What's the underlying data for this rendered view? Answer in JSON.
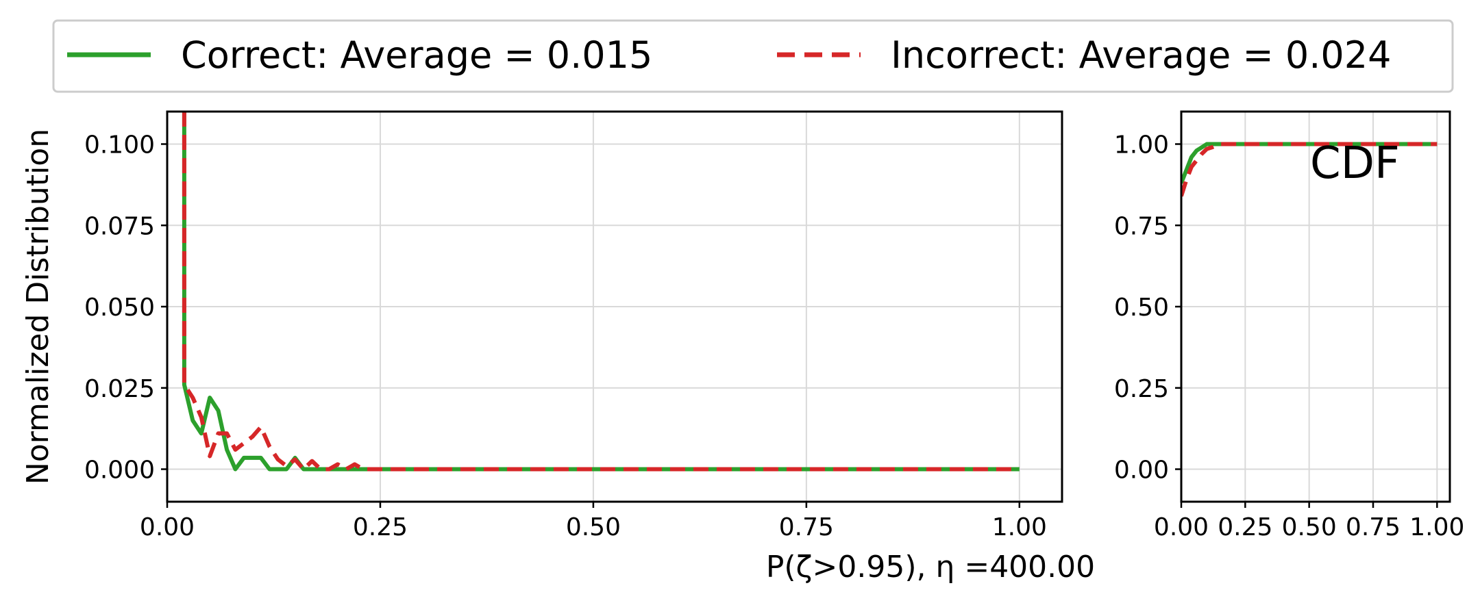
{
  "chart_data": [
    {
      "type": "line",
      "panel": "distribution",
      "xlabel": "P(ζ>0.95), η =400.00",
      "ylabel": "Normalized Distribution",
      "xlim": [
        0.0,
        1.05
      ],
      "ylim": [
        -0.01,
        0.11
      ],
      "xticks": [
        0.0,
        0.25,
        0.5,
        0.75,
        1.0
      ],
      "xtick_labels": [
        "0.00",
        "0.25",
        "0.50",
        "0.75",
        "1.00"
      ],
      "yticks": [
        0.0,
        0.025,
        0.05,
        0.075,
        0.1
      ],
      "ytick_labels": [
        "0.000",
        "0.025",
        "0.050",
        "0.075",
        "0.100"
      ],
      "grid": true,
      "legend_position": "top (above plots)",
      "series": [
        {
          "name": "Correct: Average = 0.015",
          "color": "#2ca02c",
          "style": "solid",
          "x": [
            0.02,
            0.02,
            0.03,
            0.04,
            0.05,
            0.06,
            0.07,
            0.08,
            0.09,
            0.1,
            0.11,
            0.12,
            0.13,
            0.14,
            0.15,
            0.16,
            0.17,
            0.18,
            0.19,
            0.2,
            0.25,
            0.5,
            0.75,
            1.0
          ],
          "y": [
            0.11,
            0.026,
            0.015,
            0.011,
            0.022,
            0.018,
            0.006,
            0.0,
            0.0035,
            0.0035,
            0.0035,
            0.0,
            0.0,
            0.0,
            0.0035,
            0.0,
            0.0,
            0.0,
            0.0,
            0.0,
            0.0,
            0.0,
            0.0,
            0.0
          ]
        },
        {
          "name": "Incorrect: Average = 0.024",
          "color": "#d62728",
          "style": "dashed",
          "x": [
            0.02,
            0.02,
            0.03,
            0.04,
            0.05,
            0.06,
            0.07,
            0.08,
            0.09,
            0.1,
            0.11,
            0.12,
            0.13,
            0.14,
            0.15,
            0.16,
            0.17,
            0.18,
            0.19,
            0.2,
            0.21,
            0.22,
            0.23,
            0.25,
            0.5,
            0.75,
            1.0
          ],
          "y": [
            0.11,
            0.026,
            0.022,
            0.016,
            0.004,
            0.011,
            0.011,
            0.006,
            0.008,
            0.01,
            0.013,
            0.007,
            0.003,
            0.001,
            0.003,
            0.0,
            0.0025,
            0.0,
            0.0,
            0.0015,
            0.0,
            0.0015,
            0.0,
            0.0,
            0.0,
            0.0,
            0.0
          ]
        }
      ]
    },
    {
      "type": "line",
      "panel": "cdf",
      "annotation": "CDF",
      "xlim": [
        0.0,
        1.05
      ],
      "ylim": [
        -0.1,
        1.1
      ],
      "xticks": [
        0.0,
        0.25,
        0.5,
        0.75,
        1.0
      ],
      "xtick_labels": [
        "0.00",
        "0.25",
        "0.50",
        "0.75",
        "1.00"
      ],
      "yticks": [
        0.0,
        0.25,
        0.5,
        0.75,
        1.0
      ],
      "ytick_labels": [
        "0.00",
        "0.25",
        "0.50",
        "0.75",
        "1.00"
      ],
      "grid": true,
      "series": [
        {
          "name": "Correct: Average = 0.015",
          "color": "#2ca02c",
          "style": "solid",
          "x": [
            0.0,
            0.02,
            0.04,
            0.06,
            0.08,
            0.1,
            0.15,
            0.2,
            0.5,
            1.0
          ],
          "y": [
            0.88,
            0.92,
            0.96,
            0.98,
            0.99,
            1.0,
            1.0,
            1.0,
            1.0,
            1.0
          ]
        },
        {
          "name": "Incorrect: Average = 0.024",
          "color": "#d62728",
          "style": "dashed",
          "x": [
            0.0,
            0.02,
            0.04,
            0.06,
            0.08,
            0.1,
            0.12,
            0.15,
            0.2,
            0.5,
            1.0
          ],
          "y": [
            0.84,
            0.89,
            0.93,
            0.95,
            0.97,
            0.985,
            0.99,
            1.0,
            1.0,
            1.0,
            1.0
          ]
        }
      ]
    }
  ]
}
